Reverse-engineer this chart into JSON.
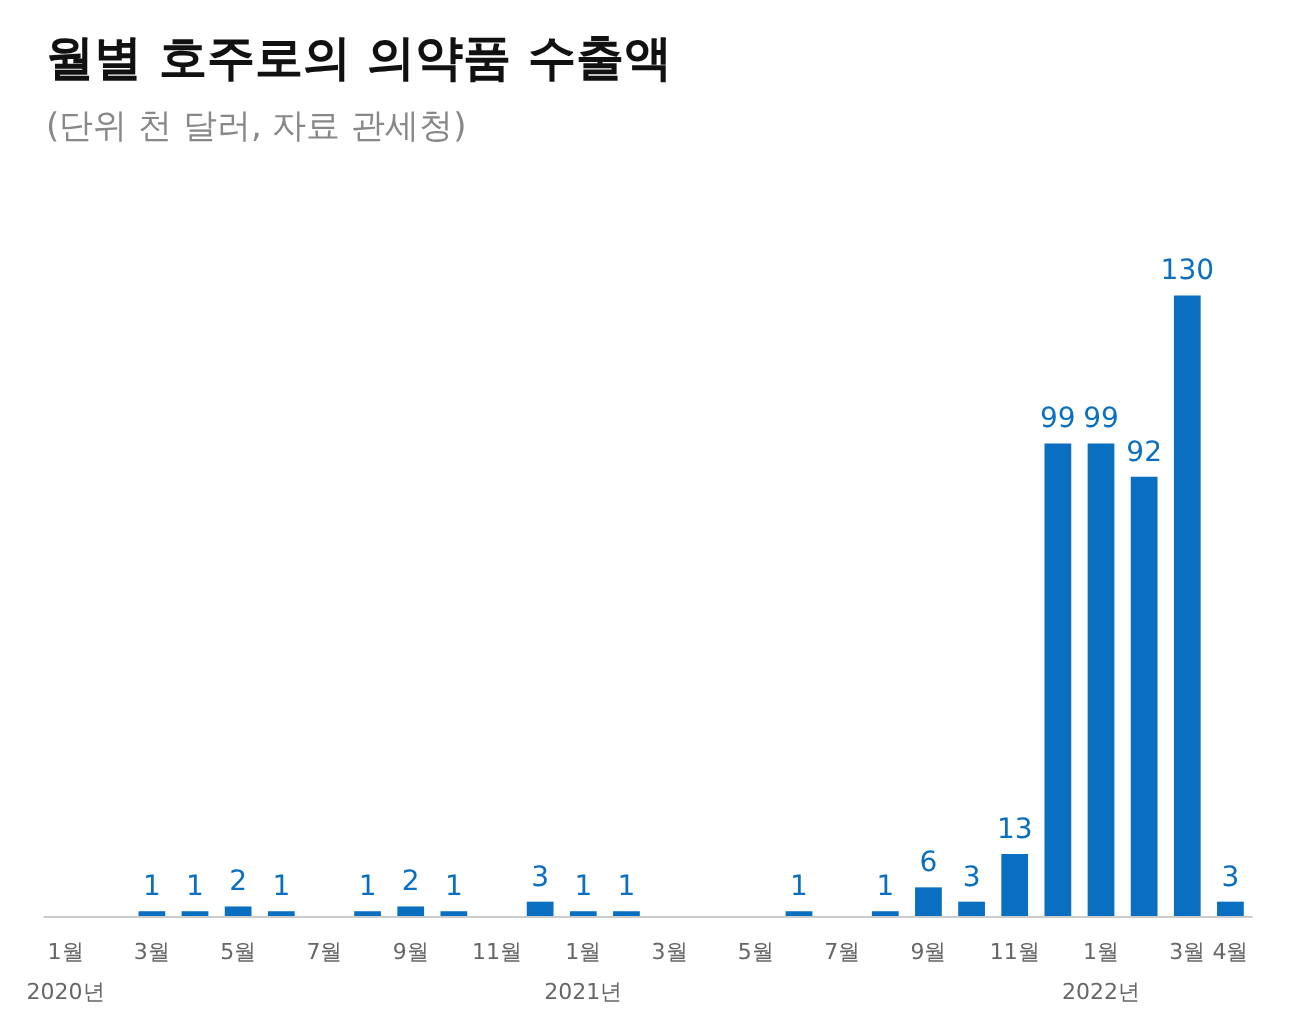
{
  "chart_data": {
    "type": "bar",
    "title": "월별 호주로의 의약품 수출액",
    "subtitle": "(단위 천 달러, 자료 관세청)",
    "categories": [
      "1월\n2020년",
      null,
      "3월",
      null,
      "5월",
      null,
      "7월",
      null,
      "9월",
      null,
      "11월",
      null,
      "1월\n2021년",
      null,
      "3월",
      null,
      "5월",
      null,
      "7월",
      null,
      "9월",
      null,
      "11월",
      null,
      "1월\n2022년",
      null,
      "3월",
      "4월"
    ],
    "values": [
      0,
      0,
      1,
      1,
      2,
      1,
      0,
      1,
      2,
      1,
      0,
      3,
      1,
      1,
      0,
      0,
      0,
      1,
      0,
      1,
      6,
      3,
      13,
      99,
      99,
      92,
      130,
      3
    ],
    "value_labels": [
      null,
      null,
      "1",
      "1",
      "2",
      "1",
      null,
      "1",
      "2",
      "1",
      null,
      "3",
      "1",
      "1",
      null,
      null,
      null,
      "1",
      null,
      "1",
      "6",
      "3",
      "13",
      "99",
      "99",
      "92",
      "130",
      "3"
    ],
    "color": "#0a6fc0"
  }
}
